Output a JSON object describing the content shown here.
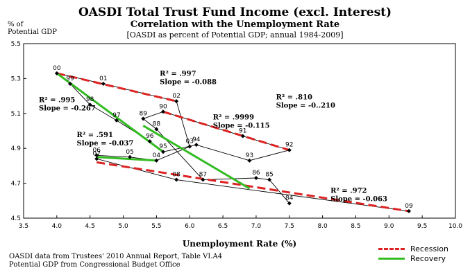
{
  "chart_data": {
    "type": "scatter",
    "title": "OASDI Total Trust Fund Income (excl. Interest)",
    "subtitle": "Correlation with the Unemployment Rate",
    "note": "[OASDI as percent of Potential GDP;  annual 1984-2009]",
    "ylabel_lines": [
      "% of",
      "Potential GDP"
    ],
    "xlabel": "Unemployment Rate (%)",
    "xlim": [
      3.5,
      10.0
    ],
    "ylim": [
      4.5,
      5.5
    ],
    "x_ticks": [
      "3.5",
      "4.0",
      "4.5",
      "5.0",
      "5.5",
      "6.0",
      "6.5",
      "7.0",
      "7.5",
      "8.0",
      "8.5",
      "9.0",
      "9.5",
      "10.0"
    ],
    "y_ticks": [
      "4.5",
      "4.7",
      "4.9",
      "5.1",
      "5.3",
      "5.5"
    ],
    "points": [
      {
        "label": "84",
        "x": 7.5,
        "y": 4.585
      },
      {
        "label": "85",
        "x": 7.2,
        "y": 4.72
      },
      {
        "label": "86",
        "x": 7.0,
        "y": 4.73
      },
      {
        "label": "87",
        "x": 6.2,
        "y": 4.72
      },
      {
        "label": "88",
        "x": 5.5,
        "y": 5.01
      },
      {
        "label": "89",
        "x": 5.3,
        "y": 5.07
      },
      {
        "label": "90",
        "x": 5.6,
        "y": 5.11
      },
      {
        "label": "91",
        "x": 6.8,
        "y": 4.97
      },
      {
        "label": "92",
        "x": 7.5,
        "y": 4.89
      },
      {
        "label": "93",
        "x": 6.9,
        "y": 4.83
      },
      {
        "label": "94",
        "x": 6.1,
        "y": 4.92
      },
      {
        "label": "95",
        "x": 5.6,
        "y": 4.88
      },
      {
        "label": "96",
        "x": 5.4,
        "y": 4.94
      },
      {
        "label": "97",
        "x": 4.9,
        "y": 5.06
      },
      {
        "label": "98",
        "x": 4.5,
        "y": 5.15
      },
      {
        "label": "99",
        "x": 4.2,
        "y": 5.27
      },
      {
        "label": "00",
        "x": 4.0,
        "y": 5.33
      },
      {
        "label": "01",
        "x": 4.7,
        "y": 5.27
      },
      {
        "label": "02",
        "x": 5.8,
        "y": 5.17
      },
      {
        "label": "03",
        "x": 6.0,
        "y": 4.91
      },
      {
        "label": "04",
        "x": 5.5,
        "y": 4.83
      },
      {
        "label": "05",
        "x": 5.1,
        "y": 4.85
      },
      {
        "label": "06",
        "x": 4.6,
        "y": 4.86
      },
      {
        "label": "07",
        "x": 4.6,
        "y": 4.84
      },
      {
        "label": "08",
        "x": 5.8,
        "y": 4.72
      },
      {
        "label": "09",
        "x": 9.3,
        "y": 4.54
      }
    ],
    "connect_order": [
      "84",
      "85",
      "86",
      "87",
      "88",
      "89",
      "90",
      "91",
      "92",
      "93",
      "94",
      "95",
      "96",
      "97",
      "98",
      "99",
      "00",
      "01",
      "02",
      "03",
      "04",
      "05",
      "06",
      "07",
      "08",
      "09"
    ],
    "recession_lines": [
      {
        "x": [
          4.0,
          5.8
        ],
        "y": [
          5.33,
          5.17
        ]
      },
      {
        "x": [
          5.6,
          7.5
        ],
        "y": [
          5.11,
          4.89
        ]
      },
      {
        "x": [
          4.6,
          9.3
        ],
        "y": [
          4.82,
          4.54
        ]
      }
    ],
    "recovery_lines": [
      {
        "x": [
          4.0,
          5.6
        ],
        "y": [
          5.33,
          4.88
        ]
      },
      {
        "x": [
          5.3,
          6.9
        ],
        "y": [
          5.03,
          4.67
        ]
      },
      {
        "x": [
          4.6,
          5.5
        ],
        "y": [
          4.85,
          4.83
        ]
      }
    ],
    "annotations": [
      {
        "line1": "R² = .997",
        "line2": "Slope = -0.088",
        "x": 5.55,
        "y": 5.315
      },
      {
        "line1": "R² = .995",
        "line2": "Slope = -0.267",
        "x": 3.73,
        "y": 5.165
      },
      {
        "line1": "R² = .9999",
        "line2": "Slope = -0.115",
        "x": 6.35,
        "y": 5.065
      },
      {
        "line1": "R² = .810",
        "line2": "Slope = -0..210",
        "x": 7.3,
        "y": 5.18
      },
      {
        "line1": "R² = .591",
        "line2": "Slope = -0.037",
        "x": 4.3,
        "y": 4.965
      },
      {
        "line1": "R² = .972",
        "line2": "Slope = -0.063",
        "x": 8.12,
        "y": 4.645
      }
    ],
    "legend": [
      {
        "label": "Recession",
        "color": "#dd2222",
        "style": "dashed"
      },
      {
        "label": "Recovery",
        "color": "#33bb22",
        "style": "solid"
      }
    ],
    "legend_position": "bottom-right",
    "grid": false
  },
  "source_lines": [
    "OASDI data from Trustees' 2010 Annual Report, Table VI.A4",
    "Potential GDP from Congressional Budget Office"
  ],
  "colors": {
    "recession": "#dd2222",
    "recovery": "#33bb22",
    "points": "#000000"
  }
}
